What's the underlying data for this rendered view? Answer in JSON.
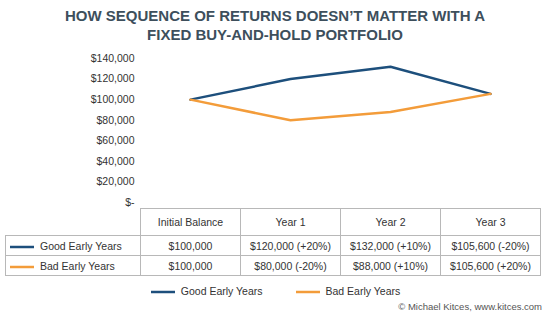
{
  "chart_data": {
    "type": "line",
    "title": "HOW SEQUENCE OF RETURNS DOESN’T MATTER WITH A FIXED BUY-AND-HOLD PORTFOLIO",
    "caption": "© Michael Kitces, www.kitces.com",
    "categories": [
      "Initial Balance",
      "Year 1",
      "Year 2",
      "Year 3"
    ],
    "series": [
      {
        "name": "Good Early Years",
        "color": "#1d4f7c",
        "values": [
          100000,
          120000,
          132000,
          105600
        ],
        "value_labels": [
          "$100,000",
          "$120,000 (+20%)",
          "$132,000 (+10%)",
          "$105,600 (-20%)"
        ]
      },
      {
        "name": "Bad Early Years",
        "color": "#f39c3a",
        "values": [
          100000,
          80000,
          88000,
          105600
        ],
        "value_labels": [
          "$100,000",
          "$80,000 (-20%)",
          "$88,000 (+10%)",
          "$105,600 (+20%)"
        ]
      }
    ],
    "ylim": [
      0,
      140000
    ],
    "yticks": [
      {
        "value": 0,
        "label": "$-"
      },
      {
        "value": 20000,
        "label": "$20,000"
      },
      {
        "value": 40000,
        "label": "$40,000"
      },
      {
        "value": 60000,
        "label": "$60,000"
      },
      {
        "value": 80000,
        "label": "$80,000"
      },
      {
        "value": 100000,
        "label": "$100,000"
      },
      {
        "value": 120000,
        "label": "$120,000"
      },
      {
        "value": 140000,
        "label": "$140,000"
      }
    ],
    "grid": false,
    "legend": "bottom"
  }
}
